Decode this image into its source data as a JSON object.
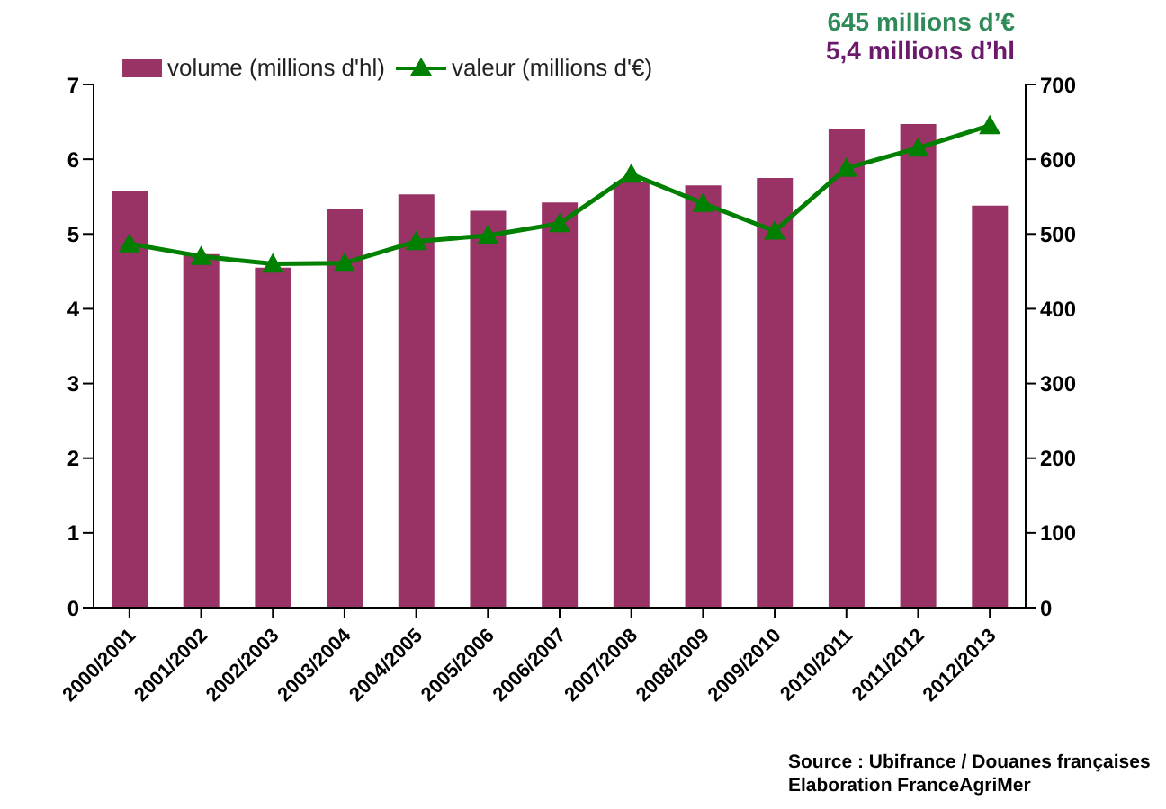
{
  "chart_data": {
    "type": "bar",
    "categories": [
      "2000/2001",
      "2001/2002",
      "2002/2003",
      "2003/2004",
      "2004/2005",
      "2005/2006",
      "2006/2007",
      "2007/2008",
      "2008/2009",
      "2009/2010",
      "2010/2011",
      "2011/2012",
      "2012/2013"
    ],
    "series": [
      {
        "name": "volume (millions d'hl)",
        "color": "#993366",
        "values": [
          5.58,
          4.73,
          4.55,
          5.34,
          5.53,
          5.31,
          5.42,
          5.69,
          5.65,
          5.75,
          6.4,
          6.47,
          5.38
        ]
      },
      {
        "name": "valeur (millions d'€)",
        "type": "line",
        "axis": "y2",
        "color": "#008000",
        "marker": "triangle",
        "values": [
          487,
          470,
          460,
          461,
          490,
          498,
          514,
          580,
          541,
          504,
          588,
          615,
          645
        ]
      }
    ],
    "ylim": [
      0,
      7
    ],
    "yticks": [
      0,
      1,
      2,
      3,
      4,
      5,
      6,
      7
    ],
    "y2lim": [
      0,
      700
    ],
    "y2ticks": [
      0,
      100,
      200,
      300,
      400,
      500,
      600,
      700
    ],
    "grid": false,
    "legend": "top left",
    "annotations": [
      "645 millions d’€",
      "5,4 millions d’hl",
      "Source : Ubifrance / Douanes françaises",
      "Elaboration FranceAgriMer"
    ]
  }
}
